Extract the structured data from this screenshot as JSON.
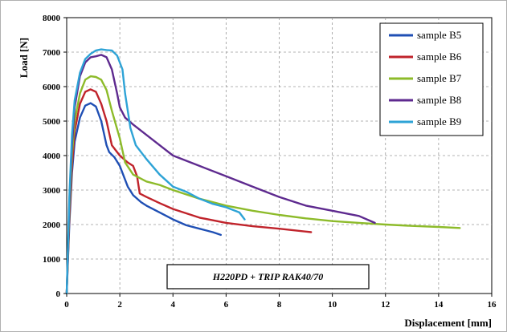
{
  "chart_data": {
    "type": "line",
    "xlabel": "Displacement [mm]",
    "ylabel": "Load [N]",
    "xlim": [
      0,
      16
    ],
    "ylim": [
      0,
      8000
    ],
    "xticks": [
      0,
      2,
      4,
      6,
      8,
      10,
      12,
      14,
      16
    ],
    "yticks": [
      0,
      1000,
      2000,
      3000,
      4000,
      5000,
      6000,
      7000,
      8000
    ],
    "grid": true,
    "legend_position": "top-right",
    "annotation": "H220PD + TRIP RAK40/70",
    "series": [
      {
        "name": "sample B5",
        "color": "#1f4fb4",
        "x": [
          0,
          0.1,
          0.2,
          0.3,
          0.5,
          0.7,
          0.9,
          1.1,
          1.3,
          1.5,
          1.6,
          1.8,
          2.0,
          2.3,
          2.5,
          2.8,
          3.0,
          3.5,
          4.0,
          4.5,
          5.0,
          5.5,
          5.8
        ],
        "y": [
          0,
          2000,
          3500,
          4400,
          5100,
          5450,
          5520,
          5420,
          5000,
          4300,
          4100,
          3950,
          3700,
          3100,
          2850,
          2650,
          2550,
          2350,
          2150,
          1980,
          1880,
          1780,
          1700
        ]
      },
      {
        "name": "sample B6",
        "color": "#c0232b",
        "x": [
          0,
          0.1,
          0.2,
          0.3,
          0.5,
          0.7,
          0.9,
          1.1,
          1.3,
          1.5,
          1.7,
          2.0,
          2.3,
          2.5,
          2.65,
          2.75,
          3.0,
          3.5,
          4.0,
          5.0,
          6.0,
          7.0,
          8.0,
          9.2
        ],
        "y": [
          0,
          2200,
          3700,
          4700,
          5500,
          5850,
          5920,
          5850,
          5500,
          5000,
          4300,
          4000,
          3800,
          3700,
          3400,
          2900,
          2800,
          2620,
          2450,
          2200,
          2050,
          1950,
          1880,
          1780
        ]
      },
      {
        "name": "sample B7",
        "color": "#8dbb2a",
        "x": [
          0,
          0.1,
          0.2,
          0.3,
          0.5,
          0.7,
          0.9,
          1.1,
          1.3,
          1.5,
          1.7,
          2.0,
          2.2,
          2.5,
          3.0,
          3.5,
          4.0,
          5.0,
          6.0,
          7.0,
          8.0,
          9.0,
          10.0,
          11.0,
          12.0,
          13.0,
          14.0,
          14.8
        ],
        "y": [
          0,
          2400,
          4000,
          5000,
          5800,
          6200,
          6300,
          6280,
          6200,
          5900,
          5300,
          4500,
          3800,
          3450,
          3250,
          3150,
          3000,
          2750,
          2550,
          2400,
          2280,
          2180,
          2100,
          2050,
          2000,
          1960,
          1930,
          1900
        ]
      },
      {
        "name": "sample B8",
        "color": "#5e2a8f",
        "x": [
          0,
          0.1,
          0.2,
          0.3,
          0.5,
          0.7,
          0.9,
          1.1,
          1.3,
          1.5,
          1.7,
          1.9,
          2.0,
          2.2,
          2.5,
          3.0,
          3.5,
          4.0,
          5.0,
          6.0,
          7.0,
          8.0,
          9.0,
          10.0,
          11.0,
          11.6
        ],
        "y": [
          0,
          2600,
          4300,
          5400,
          6300,
          6700,
          6850,
          6880,
          6920,
          6850,
          6500,
          5800,
          5400,
          5100,
          4900,
          4600,
          4300,
          4000,
          3700,
          3400,
          3100,
          2800,
          2550,
          2400,
          2250,
          2050
        ]
      },
      {
        "name": "sample B9",
        "color": "#2ea3d6",
        "x": [
          0,
          0.1,
          0.2,
          0.3,
          0.5,
          0.7,
          0.9,
          1.1,
          1.3,
          1.5,
          1.7,
          1.9,
          2.1,
          2.2,
          2.4,
          2.6,
          3.0,
          3.5,
          4.0,
          4.5,
          5.0,
          5.5,
          6.0,
          6.5,
          6.7
        ],
        "y": [
          0,
          2800,
          4600,
          5600,
          6400,
          6800,
          6950,
          7050,
          7080,
          7060,
          7050,
          6900,
          6500,
          5800,
          4800,
          4300,
          3900,
          3450,
          3100,
          2950,
          2750,
          2600,
          2500,
          2350,
          2150
        ]
      }
    ]
  }
}
